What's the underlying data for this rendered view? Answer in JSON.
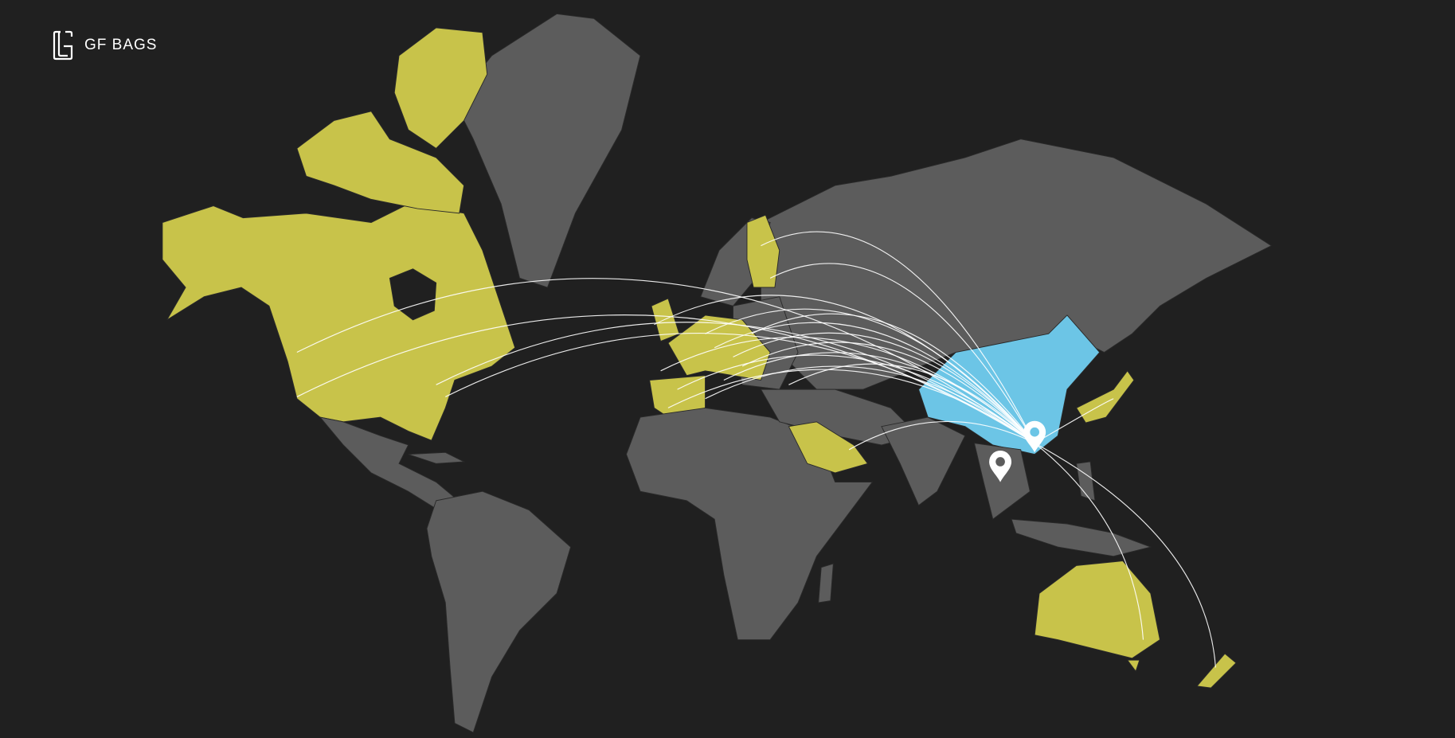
{
  "brand": {
    "name": "GF BAGS",
    "logo_icon": "gf-monogram-logo"
  },
  "colors": {
    "background": "#202020",
    "land": "#5c5c5c",
    "market": "#c8c34a",
    "origin": "#6cc5e6",
    "arc": "#ffffff",
    "pin": "#ffffff"
  },
  "pins": [
    {
      "name": "location-pin-icon",
      "color_dot": "#6cc5e6"
    },
    {
      "name": "location-pin-icon",
      "color_dot": "#5c5c5c"
    }
  ]
}
